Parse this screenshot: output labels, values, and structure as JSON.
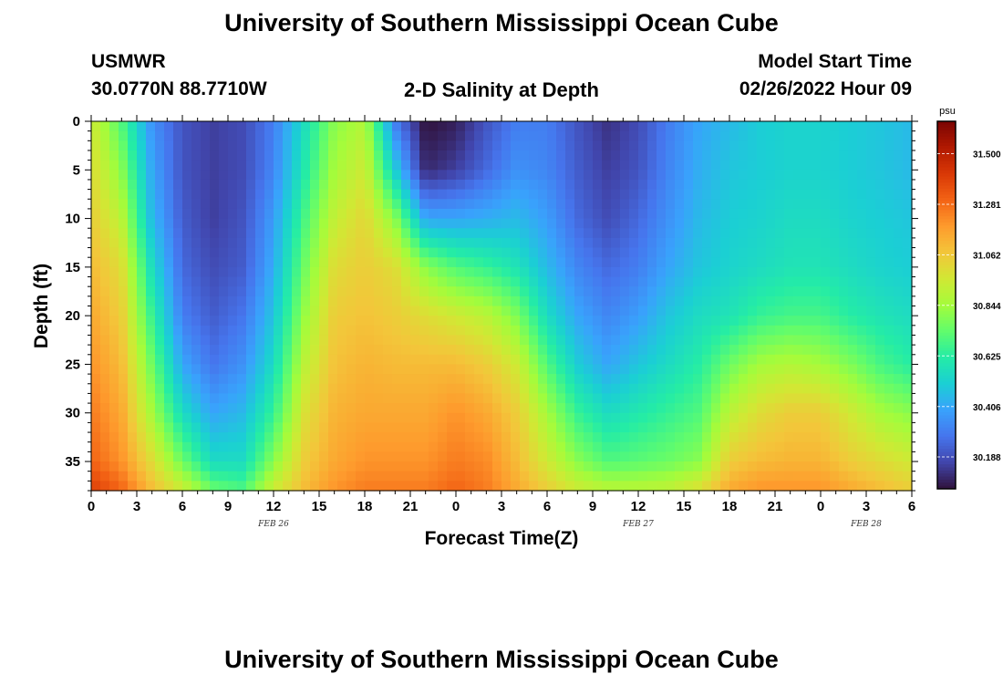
{
  "page": {
    "title": "University of Southern Mississippi Ocean Cube",
    "station": "USMWR",
    "coords": "30.0770N  88.7710W",
    "subtitle": "2-D Salinity at Depth",
    "start_label": "Model Start Time",
    "start_value": "02/26/2022 Hour 09",
    "bottom_title": "University of Southern Mississippi Ocean Cube"
  },
  "colors": {
    "colormap": [
      "#30123b",
      "#4145ab",
      "#4675ed",
      "#39a2fc",
      "#1bcfd4",
      "#24eca6",
      "#61fc6c",
      "#a4fc3b",
      "#d1e834",
      "#f3c63a",
      "#fe9b2d",
      "#f36315",
      "#d93806",
      "#b11901",
      "#7a0403"
    ]
  },
  "chart_data": {
    "type": "heatmap",
    "title": "2-D Salinity at Depth",
    "xlabel": "Forecast Time(Z)",
    "ylabel": "Depth (ft)",
    "x_ticks": [
      "0",
      "3",
      "6",
      "9",
      "12",
      "15",
      "18",
      "21",
      "0",
      "3",
      "6",
      "9",
      "12",
      "15",
      "18",
      "21",
      "0",
      "3",
      "6"
    ],
    "x_day_labels": [
      {
        "label": "FEB 26",
        "hour_offset": 12
      },
      {
        "label": "FEB 27",
        "hour_offset": 36
      },
      {
        "label": "FEB 28",
        "hour_offset": 51
      }
    ],
    "xlim_hours": [
      0,
      54
    ],
    "y_ticks": [
      0,
      5,
      10,
      15,
      20,
      25,
      30,
      35
    ],
    "ylim_ft": [
      0,
      38
    ],
    "y_inverted": true,
    "colorbar": {
      "unit": "psu",
      "ticks": [
        "31.500",
        "31.281",
        "31.062",
        "30.844",
        "30.625",
        "30.406",
        "30.188"
      ],
      "range": [
        30.05,
        31.64
      ]
    },
    "salinity_grid_psu": {
      "hours": [
        0,
        2,
        4,
        6,
        8,
        10,
        12,
        14,
        16,
        18,
        20,
        22,
        24,
        26,
        28,
        30,
        32,
        34,
        36,
        38,
        40,
        42,
        44,
        46,
        48,
        50,
        52,
        54
      ],
      "depths_ft": [
        0,
        5,
        10,
        15,
        20,
        25,
        30,
        35,
        38
      ],
      "values": [
        [
          30.95,
          31.0,
          31.05,
          31.1,
          31.15,
          31.2,
          31.25,
          31.3,
          31.4
        ],
        [
          30.7,
          30.8,
          30.9,
          31.0,
          31.05,
          31.1,
          31.15,
          31.2,
          31.3
        ],
        [
          30.35,
          30.4,
          30.45,
          30.55,
          30.65,
          30.75,
          30.85,
          31.0,
          31.1
        ],
        [
          30.2,
          30.2,
          30.22,
          30.25,
          30.3,
          30.4,
          30.55,
          30.75,
          30.95
        ],
        [
          30.15,
          30.15,
          30.15,
          30.18,
          30.22,
          30.28,
          30.4,
          30.55,
          30.75
        ],
        [
          30.18,
          30.18,
          30.2,
          30.22,
          30.28,
          30.35,
          30.45,
          30.55,
          30.7
        ],
        [
          30.3,
          30.32,
          30.38,
          30.42,
          30.48,
          30.55,
          30.65,
          30.8,
          30.95
        ],
        [
          30.55,
          30.6,
          30.68,
          30.75,
          30.82,
          30.9,
          30.98,
          31.05,
          31.1
        ],
        [
          30.8,
          30.85,
          30.92,
          31.0,
          31.05,
          31.08,
          31.12,
          31.15,
          31.2
        ],
        [
          30.88,
          30.95,
          31.02,
          31.05,
          31.08,
          31.12,
          31.15,
          31.2,
          31.25
        ],
        [
          30.3,
          30.5,
          30.8,
          31.0,
          31.05,
          31.1,
          31.15,
          31.2,
          31.25
        ],
        [
          30.05,
          30.1,
          30.4,
          30.8,
          31.0,
          31.1,
          31.15,
          31.2,
          31.25
        ],
        [
          30.08,
          30.15,
          30.4,
          30.7,
          30.95,
          31.1,
          31.2,
          31.25,
          31.3
        ],
        [
          30.2,
          30.25,
          30.42,
          30.65,
          30.9,
          31.05,
          31.15,
          31.22,
          31.25
        ],
        [
          30.3,
          30.35,
          30.45,
          30.58,
          30.78,
          30.95,
          31.05,
          31.1,
          31.15
        ],
        [
          30.3,
          30.32,
          30.38,
          30.45,
          30.55,
          30.7,
          30.85,
          30.95,
          31.05
        ],
        [
          30.2,
          30.22,
          30.25,
          30.32,
          30.4,
          30.5,
          30.65,
          30.8,
          30.95
        ],
        [
          30.12,
          30.15,
          30.18,
          30.25,
          30.32,
          30.4,
          30.55,
          30.7,
          30.9
        ],
        [
          30.18,
          30.2,
          30.25,
          30.3,
          30.38,
          30.48,
          30.6,
          30.72,
          30.9
        ],
        [
          30.3,
          30.32,
          30.35,
          30.4,
          30.48,
          30.55,
          30.65,
          30.75,
          30.92
        ],
        [
          30.4,
          30.42,
          30.45,
          30.48,
          30.55,
          30.62,
          30.7,
          30.8,
          31.0
        ],
        [
          30.45,
          30.48,
          30.5,
          30.52,
          30.58,
          30.75,
          30.9,
          31.05,
          31.15
        ],
        [
          30.5,
          30.5,
          30.52,
          30.55,
          30.65,
          30.85,
          31.0,
          31.1,
          31.2
        ],
        [
          30.52,
          30.52,
          30.55,
          30.58,
          30.68,
          30.88,
          31.05,
          31.12,
          31.2
        ],
        [
          30.52,
          30.52,
          30.55,
          30.58,
          30.68,
          30.85,
          31.05,
          31.12,
          31.2
        ],
        [
          30.5,
          30.5,
          30.52,
          30.55,
          30.62,
          30.78,
          30.95,
          31.05,
          31.15
        ],
        [
          30.48,
          30.48,
          30.5,
          30.52,
          30.58,
          30.68,
          30.85,
          31.0,
          31.1
        ],
        [
          30.45,
          30.45,
          30.48,
          30.5,
          30.55,
          30.62,
          30.8,
          30.95,
          31.05
        ]
      ]
    }
  }
}
